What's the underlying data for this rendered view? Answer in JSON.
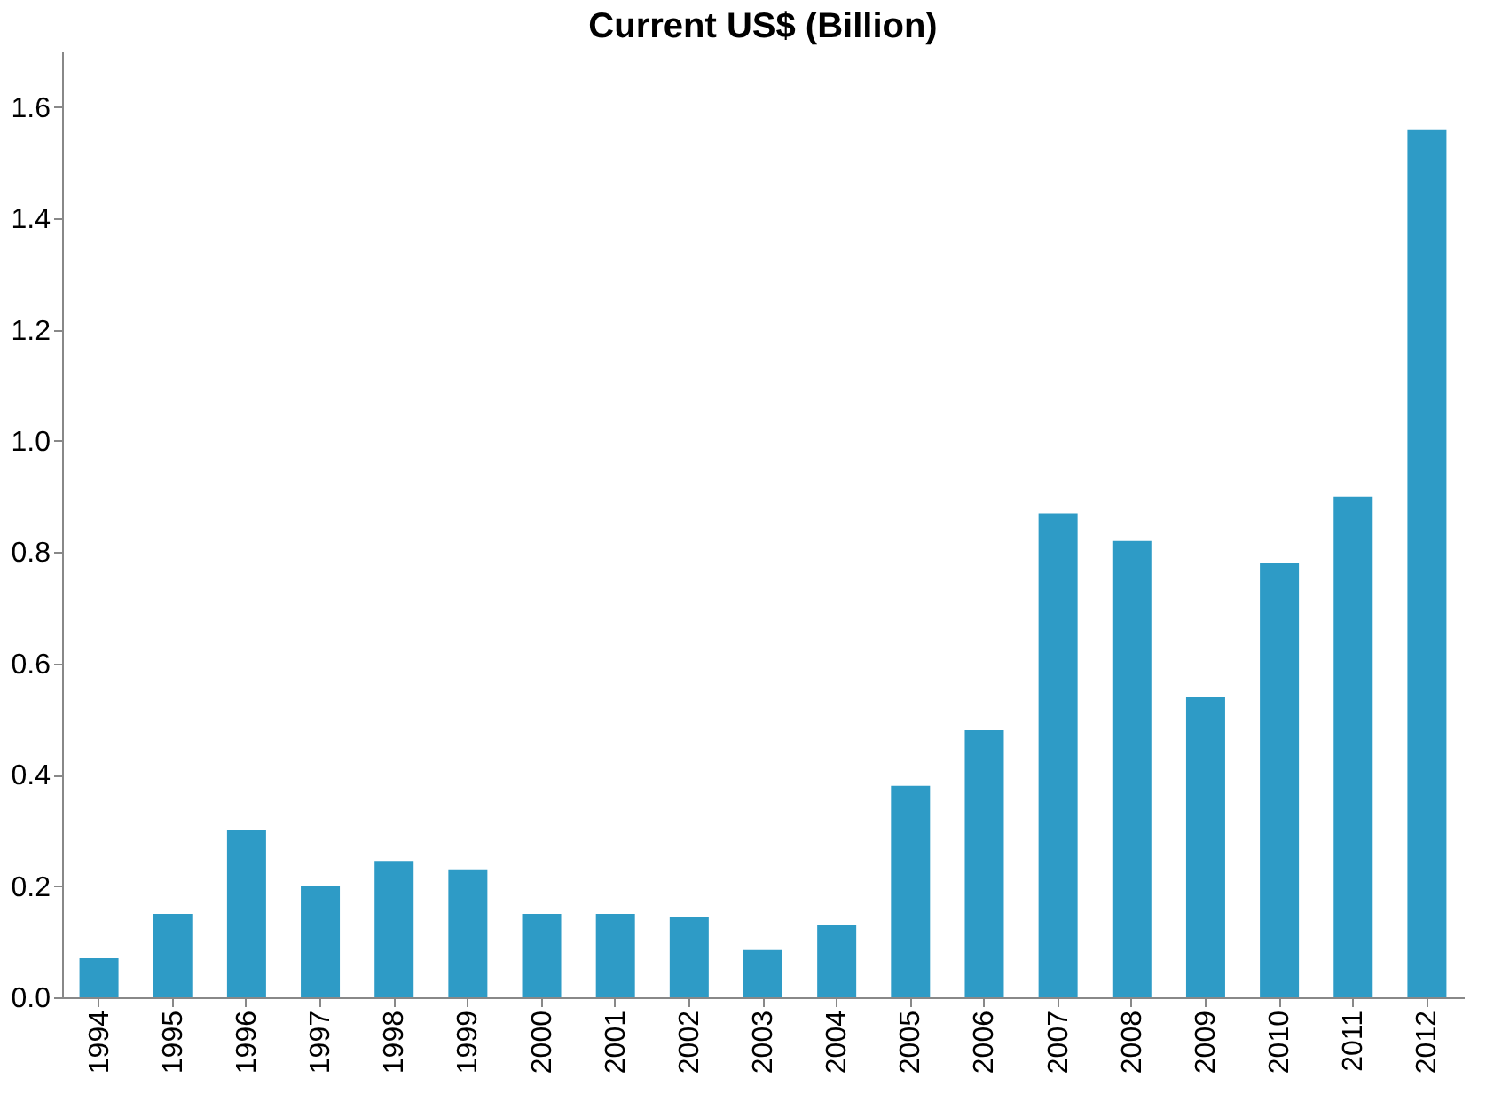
{
  "chart_data": {
    "type": "bar",
    "title": "Current US$ (Billion)",
    "categories": [
      "1994",
      "1995",
      "1996",
      "1997",
      "1998",
      "1999",
      "2000",
      "2001",
      "2002",
      "2003",
      "2004",
      "2005",
      "2006",
      "2007",
      "2008",
      "2009",
      "2010",
      "2011",
      "2012"
    ],
    "values": [
      0.07,
      0.15,
      0.3,
      0.2,
      0.245,
      0.23,
      0.15,
      0.15,
      0.145,
      0.085,
      0.13,
      0.38,
      0.48,
      0.87,
      0.82,
      0.54,
      0.78,
      0.9,
      1.56
    ],
    "color": "#2e9bc6",
    "ylim": [
      0,
      1.7
    ],
    "yticks": [
      {
        "value": 0,
        "label": "0.0"
      },
      {
        "value": 0.2,
        "label": "0.2"
      },
      {
        "value": 0.4,
        "label": "0.4"
      },
      {
        "value": 0.6,
        "label": "0.6"
      },
      {
        "value": 0.8,
        "label": "0.8"
      },
      {
        "value": 1.0,
        "label": "1.0"
      },
      {
        "value": 1.2,
        "label": "1.2"
      },
      {
        "value": 1.4,
        "label": "1.4"
      },
      {
        "value": 1.6,
        "label": "1.6"
      }
    ],
    "grid": false
  }
}
